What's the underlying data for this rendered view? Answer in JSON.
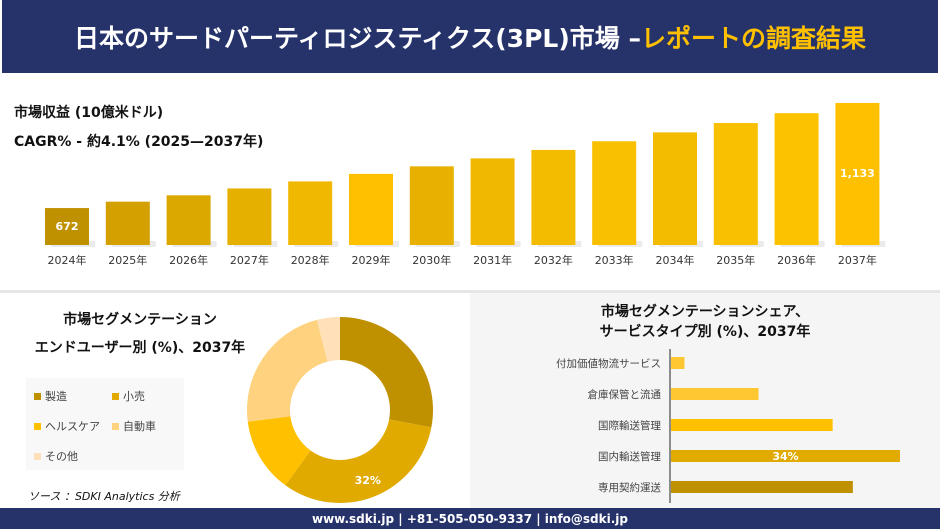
{
  "header": {
    "title_main": "日本のサードパーティロジスティクス(3PL)市場 –",
    "title_accent": "レポートの調査結果"
  },
  "revenue": {
    "label": "市場収益 (10億米ドル)",
    "cagr": "CAGR% - 約4.1% (2025—2037年)"
  },
  "donut": {
    "title_line1": "市場セグメンテーション",
    "title_line2": "エンドユーザー別 (%)、2037年",
    "source": "ソース ：SDKI Analytics 分析"
  },
  "hbar": {
    "title_line1": "市場セグメンテーションシェア、",
    "title_line2": "サービスタイプ別 (%)、2037年"
  },
  "footer": {
    "text": "www.sdki.jp | +81-505-050-9337 | info@sdki.jp"
  },
  "chart_data": [
    {
      "type": "bar",
      "categories": [
        "2024年",
        "2025年",
        "2026年",
        "2027年",
        "2028年",
        "2029年",
        "2030年",
        "2031年",
        "2032年",
        "2033年",
        "2034年",
        "2035年",
        "2036年",
        "2037年"
      ],
      "values": [
        672,
        700,
        728,
        758,
        789,
        822,
        855,
        890,
        927,
        965,
        1004,
        1045,
        1088,
        1133
      ],
      "data_labels": {
        "2024年": "672",
        "2037年": "1,133"
      },
      "ylim": [
        510,
        1150
      ],
      "colors": [
        "#bf9000",
        "#d4a000",
        "#dba800",
        "#e6b000",
        "#f0b800",
        "#ffc000",
        "#e8b000",
        "#f0b800",
        "#f4bc00",
        "#f8c000",
        "#f4bc00",
        "#f8c000",
        "#fcc200",
        "#ffc000"
      ],
      "grid": false
    },
    {
      "type": "pie",
      "donut": true,
      "labels": [
        "製造",
        "小売",
        "ヘルスケア",
        "自動車",
        "その他"
      ],
      "values": [
        28,
        32,
        13,
        23,
        4
      ],
      "colors": [
        "#bf9000",
        "#e0aa00",
        "#ffc000",
        "#ffd27f",
        "#ffe0b8"
      ],
      "data_labels": {
        "小売": "32%"
      },
      "legend": "left"
    },
    {
      "type": "bar",
      "orientation": "horizontal",
      "categories": [
        "付加価値物流サービス",
        "倉庫保管と流通",
        "国際輸送管理",
        "国内輸送管理",
        "専用契約運送"
      ],
      "values": [
        2,
        13,
        24,
        34,
        27
      ],
      "colors": [
        "#ffc832",
        "#ffc832",
        "#ffc000",
        "#e0aa00",
        "#bf9000"
      ],
      "data_labels": {
        "国内輸送管理": "34%"
      },
      "unit": "%"
    }
  ]
}
